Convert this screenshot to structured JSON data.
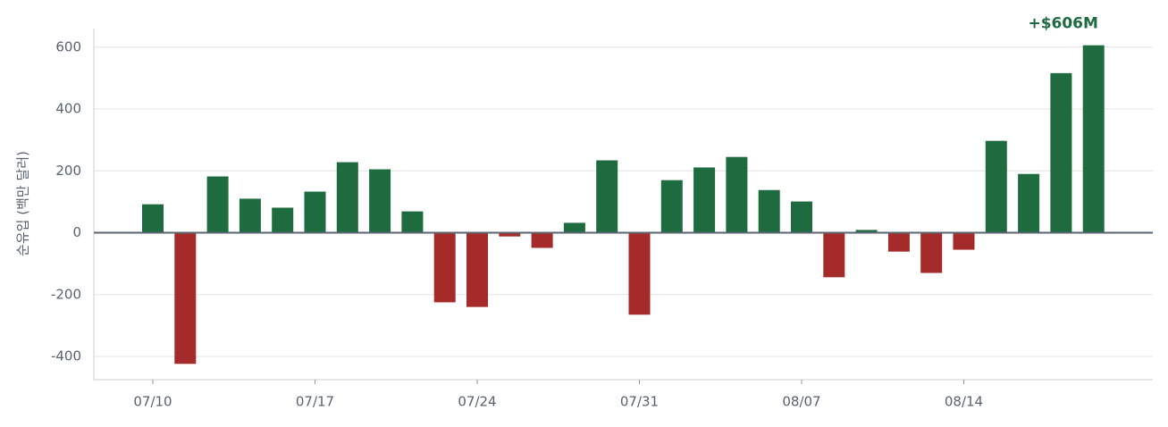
{
  "chart_data": {
    "type": "bar",
    "y_label": "순유입 (백만 달러)",
    "categories": [
      "07/10",
      null,
      null,
      null,
      null,
      "07/17",
      null,
      null,
      null,
      null,
      "07/24",
      null,
      null,
      null,
      null,
      "07/31",
      null,
      null,
      null,
      null,
      "08/07",
      null,
      null,
      null,
      null,
      "08/14",
      null,
      null,
      null,
      null
    ],
    "values": [
      92,
      -424,
      182,
      110,
      81,
      133,
      228,
      205,
      69,
      -225,
      -240,
      -12,
      -49,
      32,
      234,
      -265,
      170,
      211,
      245,
      138,
      101,
      -144,
      9,
      -61,
      -130,
      -55,
      297,
      190,
      516,
      606
    ],
    "value_labels": [
      null,
      null,
      null,
      null,
      null,
      null,
      null,
      null,
      null,
      null,
      null,
      null,
      null,
      null,
      null,
      null,
      null,
      null,
      null,
      null,
      null,
      null,
      null,
      null,
      null,
      null,
      null,
      null,
      null,
      "+$606M"
    ],
    "positive_color": "#1e6b40",
    "negative_color": "#a52a2a",
    "ylim": [
      -475,
      660
    ],
    "yticks": [
      -400,
      -200,
      0,
      200,
      400,
      600
    ],
    "grid": true
  }
}
